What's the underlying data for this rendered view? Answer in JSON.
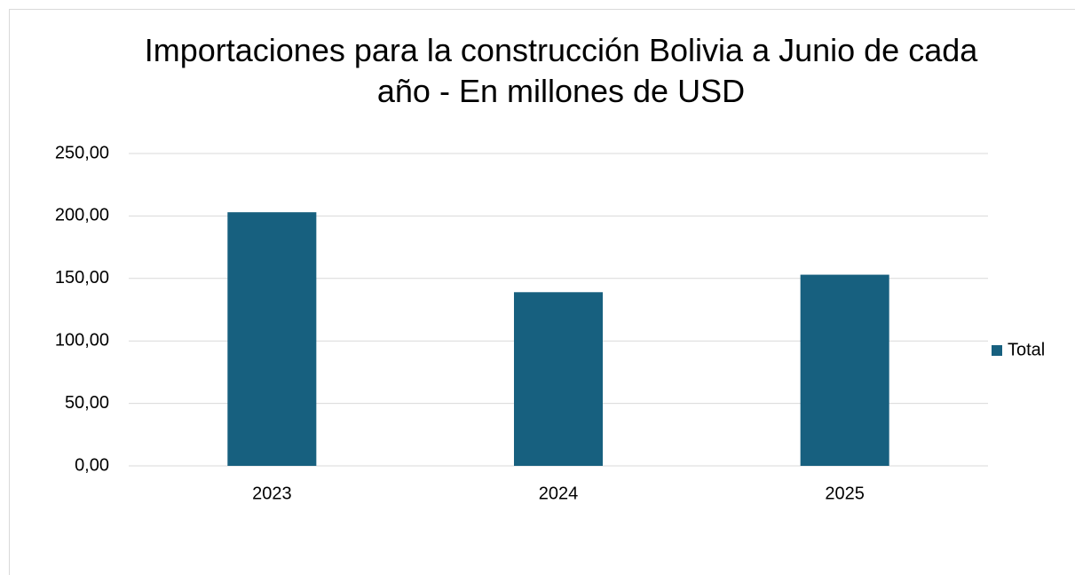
{
  "chart_data": {
    "type": "bar",
    "title": "Importaciones para la construcción Bolivia a Junio de cada año - En millones de USD",
    "categories": [
      "2023",
      "2024",
      "2025"
    ],
    "series": [
      {
        "name": "Total",
        "color": "#17607f",
        "values": [
          203,
          139,
          153
        ]
      }
    ],
    "ylim": [
      0,
      250
    ],
    "yticks": [
      {
        "value": 0,
        "label": "0,00"
      },
      {
        "value": 50,
        "label": "50,00"
      },
      {
        "value": 100,
        "label": "100,00"
      },
      {
        "value": 150,
        "label": "150,00"
      },
      {
        "value": 200,
        "label": "200,00"
      },
      {
        "value": 250,
        "label": "250,00"
      }
    ],
    "grid": true,
    "legend": "right"
  }
}
